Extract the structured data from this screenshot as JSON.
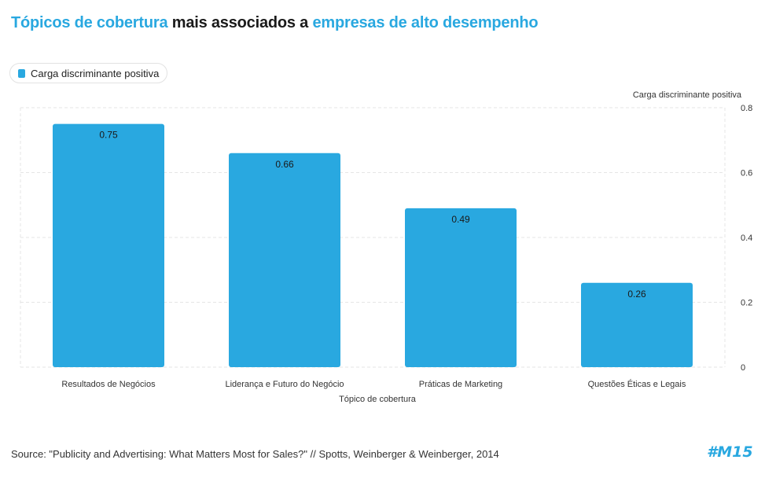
{
  "title": {
    "part1": "Tópicos de cobertura",
    "part2": " mais associados a ",
    "part3": "empresas de alto desempenho"
  },
  "legend": {
    "label": "Carga discriminante positiva"
  },
  "colors": {
    "accent": "#29a8e0",
    "text": "#1a1a1a",
    "grid": "#e5e5e5"
  },
  "source": "Source: \"Publicity and Advertising: What Matters Most for Sales?\" // Spotts, Weinberger & Weinberger, 2014",
  "logo": {
    "text": "#M15",
    "icon": "brand-logo"
  },
  "chart_data": {
    "type": "bar",
    "categories": [
      "Resultados de Negócios",
      "Liderança e Futuro do Negócio",
      "Práticas de Marketing",
      "Questões Éticas e Legais"
    ],
    "series": [
      {
        "name": "Carga discriminante positiva",
        "values": [
          0.75,
          0.66,
          0.49,
          0.26
        ]
      }
    ],
    "data_labels": [
      "0.75",
      "0.66",
      "0.49",
      "0.26"
    ],
    "xlabel": "Tópico de cobertura",
    "ylabel": "Carga discriminante positiva",
    "ylim": [
      0,
      0.8
    ],
    "yticks": [
      "0",
      "0.2",
      "0.4",
      "0.6",
      "0.8"
    ],
    "y_axis_side": "right",
    "grid": true,
    "legend_position": "top-left"
  }
}
